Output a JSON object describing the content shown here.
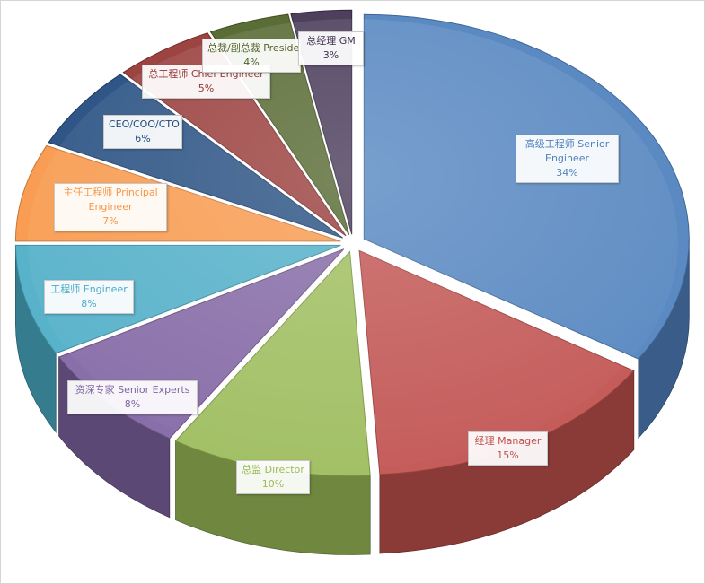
{
  "chart_data": {
    "type": "pie",
    "style": "3d-exploded",
    "legend": "none",
    "slices": [
      {
        "label": "高级工程师 Senior Engineer",
        "value": 34,
        "display": "34%",
        "color": "#4F81BD"
      },
      {
        "label": "经理 Manager",
        "value": 15,
        "display": "15%",
        "color": "#C0504D"
      },
      {
        "label": "总监 Director",
        "value": 10,
        "display": "10%",
        "color": "#9BBB59"
      },
      {
        "label": "资深专家 Senior Experts",
        "value": 8,
        "display": "8%",
        "color": "#8064A2"
      },
      {
        "label": "工程师 Engineer",
        "value": 8,
        "display": "8%",
        "color": "#4BACC6"
      },
      {
        "label": "主任工程师 Principal Engineer",
        "value": 7,
        "display": "7%",
        "color": "#F79646"
      },
      {
        "label": "CEO/COO/CTO",
        "value": 6,
        "display": "6%",
        "color": "#1F497D"
      },
      {
        "label": "总工程师 Chief Engineer",
        "value": 5,
        "display": "5%",
        "color": "#943634"
      },
      {
        "label": "总裁/副总裁 President",
        "value": 4,
        "display": "4%",
        "color": "#4F6228"
      },
      {
        "label": "总经理 GM",
        "value": 3,
        "display": "3%",
        "color": "#3F3151"
      }
    ]
  }
}
